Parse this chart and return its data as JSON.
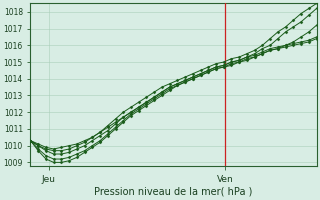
{
  "title": "Pression niveau de la mer( hPa )",
  "ylim": [
    1008.8,
    1018.5
  ],
  "xlim": [
    0,
    47
  ],
  "xtick_positions": [
    3,
    32
  ],
  "xtick_labels": [
    "Jeu",
    "Ven"
  ],
  "vline_x": 32,
  "bg_color": "#d8ede4",
  "grid_color": "#aacfba",
  "line_color": "#1a5c1a",
  "marker_color": "#1a5c1a",
  "series": [
    [
      1010.3,
      1010.1,
      1009.9,
      1009.8,
      1009.9,
      1010.0,
      1010.1,
      1010.3,
      1010.5,
      1010.8,
      1011.1,
      1011.4,
      1011.7,
      1012.0,
      1012.3,
      1012.6,
      1012.9,
      1013.2,
      1013.5,
      1013.7,
      1013.9,
      1014.1,
      1014.3,
      1014.5,
      1014.7,
      1014.8,
      1015.0,
      1015.1,
      1015.3,
      1015.5,
      1015.8,
      1016.0,
      1016.4,
      1016.8,
      1017.1,
      1017.4,
      1017.8,
      1018.2
    ],
    [
      1010.3,
      1010.0,
      1009.7,
      1009.5,
      1009.5,
      1009.6,
      1009.8,
      1010.0,
      1010.3,
      1010.6,
      1010.9,
      1011.3,
      1011.7,
      1012.0,
      1012.3,
      1012.6,
      1012.9,
      1013.2,
      1013.5,
      1013.7,
      1013.9,
      1014.1,
      1014.3,
      1014.5,
      1014.7,
      1014.8,
      1015.0,
      1015.1,
      1015.3,
      1015.4,
      1015.6,
      1015.8,
      1015.9,
      1016.0,
      1016.1,
      1016.2,
      1016.3,
      1016.5
    ],
    [
      1010.3,
      1009.8,
      1009.4,
      1009.2,
      1009.2,
      1009.3,
      1009.5,
      1009.7,
      1010.0,
      1010.3,
      1010.7,
      1011.1,
      1011.5,
      1011.9,
      1012.2,
      1012.5,
      1012.8,
      1013.1,
      1013.4,
      1013.6,
      1013.8,
      1014.0,
      1014.2,
      1014.4,
      1014.6,
      1014.7,
      1014.9,
      1015.0,
      1015.2,
      1015.3,
      1015.5,
      1015.7,
      1015.8,
      1015.9,
      1016.0,
      1016.1,
      1016.2,
      1016.4
    ],
    [
      1010.3,
      1009.7,
      1009.2,
      1009.0,
      1009.0,
      1009.1,
      1009.3,
      1009.6,
      1009.9,
      1010.2,
      1010.6,
      1011.0,
      1011.4,
      1011.8,
      1012.1,
      1012.4,
      1012.7,
      1013.0,
      1013.3,
      1013.6,
      1013.8,
      1014.0,
      1014.2,
      1014.4,
      1014.6,
      1014.7,
      1014.8,
      1015.0,
      1015.1,
      1015.3,
      1015.5,
      1015.7,
      1015.8,
      1016.0,
      1016.2,
      1016.5,
      1016.8,
      1017.2
    ],
    [
      1010.3,
      1010.0,
      1009.8,
      1009.7,
      1009.7,
      1009.8,
      1010.0,
      1010.2,
      1010.5,
      1010.8,
      1011.2,
      1011.6,
      1012.0,
      1012.3,
      1012.6,
      1012.9,
      1013.2,
      1013.5,
      1013.7,
      1013.9,
      1014.1,
      1014.3,
      1014.5,
      1014.7,
      1014.9,
      1015.0,
      1015.2,
      1015.3,
      1015.5,
      1015.7,
      1016.0,
      1016.4,
      1016.8,
      1017.1,
      1017.5,
      1017.9,
      1018.2,
      1018.5
    ]
  ]
}
